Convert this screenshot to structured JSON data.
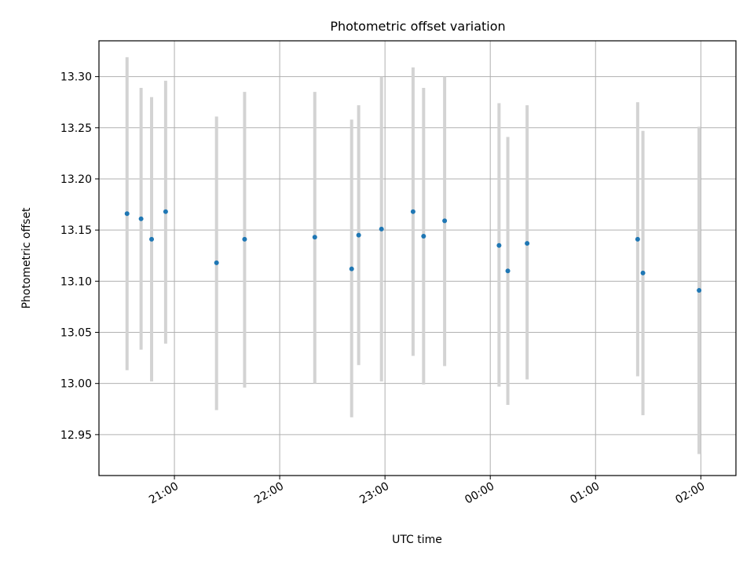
{
  "chart_data": {
    "type": "scatter",
    "title": "Photometric offset variation",
    "xlabel": "UTC time",
    "ylabel": "Photometric offset",
    "x_axis_kind": "time",
    "x_reference_date": "",
    "xlim": [
      "20:17",
      "26:20"
    ],
    "ylim": [
      12.91,
      13.335
    ],
    "x_ticks": [
      "21:00",
      "22:00",
      "23:00",
      "00:00",
      "01:00",
      "02:00"
    ],
    "y_ticks": [
      "12.95",
      "13.00",
      "13.05",
      "13.10",
      "13.15",
      "13.20",
      "13.25",
      "13.30"
    ],
    "grid": true,
    "errorbar_color": "#d3d3d3",
    "marker_color": "#1f77b4",
    "points": [
      {
        "x": "20:33",
        "y": 13.166,
        "yerr_low": 13.013,
        "yerr_high": 13.319
      },
      {
        "x": "20:41",
        "y": 13.161,
        "yerr_low": 13.033,
        "yerr_high": 13.289
      },
      {
        "x": "20:47",
        "y": 13.141,
        "yerr_low": 13.002,
        "yerr_high": 13.28
      },
      {
        "x": "20:55",
        "y": 13.168,
        "yerr_low": 13.039,
        "yerr_high": 13.296
      },
      {
        "x": "21:24",
        "y": 13.118,
        "yerr_low": 12.974,
        "yerr_high": 13.261
      },
      {
        "x": "21:40",
        "y": 13.141,
        "yerr_low": 12.996,
        "yerr_high": 13.285
      },
      {
        "x": "22:20",
        "y": 13.143,
        "yerr_low": 13.0,
        "yerr_high": 13.285
      },
      {
        "x": "22:41",
        "y": 13.112,
        "yerr_low": 12.967,
        "yerr_high": 13.258
      },
      {
        "x": "22:45",
        "y": 13.145,
        "yerr_low": 13.018,
        "yerr_high": 13.272
      },
      {
        "x": "22:58",
        "y": 13.151,
        "yerr_low": 13.002,
        "yerr_high": 13.3
      },
      {
        "x": "23:16",
        "y": 13.168,
        "yerr_low": 13.027,
        "yerr_high": 13.309
      },
      {
        "x": "23:22",
        "y": 13.144,
        "yerr_low": 12.999,
        "yerr_high": 13.289
      },
      {
        "x": "23:34",
        "y": 13.159,
        "yerr_low": 13.017,
        "yerr_high": 13.3
      },
      {
        "x": "24:05",
        "y": 13.135,
        "yerr_low": 12.997,
        "yerr_high": 13.274
      },
      {
        "x": "24:10",
        "y": 13.11,
        "yerr_low": 12.979,
        "yerr_high": 13.241
      },
      {
        "x": "24:21",
        "y": 13.137,
        "yerr_low": 13.004,
        "yerr_high": 13.272
      },
      {
        "x": "25:24",
        "y": 13.141,
        "yerr_low": 13.007,
        "yerr_high": 13.275
      },
      {
        "x": "25:27",
        "y": 13.108,
        "yerr_low": 12.969,
        "yerr_high": 13.247
      },
      {
        "x": "25:59",
        "y": 13.091,
        "yerr_low": 12.931,
        "yerr_high": 13.251
      }
    ]
  }
}
